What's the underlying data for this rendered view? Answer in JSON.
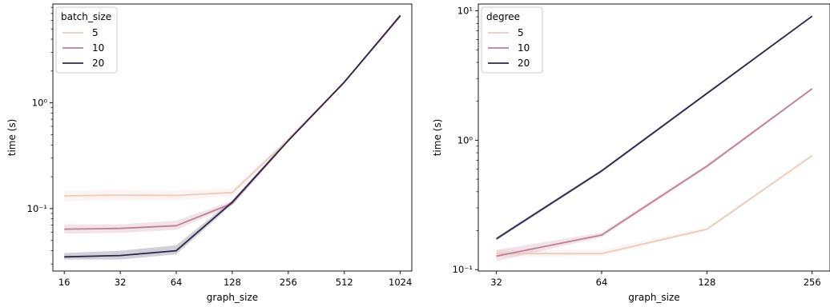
{
  "chart_data": [
    {
      "type": "line",
      "xlabel": "graph_size",
      "ylabel": "time (s)",
      "x_scale": "log2",
      "y_scale": "log10",
      "xlim": [
        13.9,
        1180
      ],
      "ylim": [
        0.0257,
        8.6
      ],
      "xticks": [
        16,
        32,
        64,
        128,
        256,
        512,
        1024
      ],
      "xtick_labels": [
        "16",
        "32",
        "64",
        "128",
        "256",
        "512",
        "1024"
      ],
      "yticks": [
        0.1,
        1
      ],
      "ytick_labels": [
        "10⁻¹",
        "10⁰"
      ],
      "legend": {
        "title": "batch_size",
        "placement": "top-left"
      },
      "x": [
        16,
        32,
        64,
        128,
        256,
        512,
        1024
      ],
      "series": [
        {
          "name": "5",
          "color": "#eccbbd",
          "values": [
            0.132,
            0.134,
            0.133,
            0.142,
            0.45,
            1.58,
            6.6
          ],
          "ci_low": [
            0.117,
            0.12,
            0.119,
            0.132,
            0.43,
            1.55,
            6.4
          ],
          "ci_high": [
            0.148,
            0.149,
            0.148,
            0.154,
            0.47,
            1.62,
            6.8
          ]
        },
        {
          "name": "10",
          "color": "#c07f97",
          "values": [
            0.064,
            0.065,
            0.069,
            0.112,
            0.44,
            1.57,
            6.6
          ],
          "ci_low": [
            0.058,
            0.059,
            0.063,
            0.107,
            0.43,
            1.54,
            6.4
          ],
          "ci_high": [
            0.071,
            0.071,
            0.077,
            0.118,
            0.46,
            1.61,
            6.8
          ]
        },
        {
          "name": "20",
          "color": "#2d2447",
          "values": [
            0.035,
            0.036,
            0.04,
            0.115,
            0.44,
            1.57,
            6.7
          ],
          "ci_low": [
            0.033,
            0.033,
            0.037,
            0.11,
            0.43,
            1.54,
            6.5
          ],
          "ci_high": [
            0.038,
            0.04,
            0.045,
            0.12,
            0.46,
            1.61,
            6.9
          ]
        }
      ]
    },
    {
      "type": "line",
      "xlabel": "graph_size",
      "ylabel": "time (s)",
      "x_scale": "log2",
      "y_scale": "log10",
      "xlim": [
        28.4,
        288
      ],
      "ylim": [
        0.0975,
        11.3
      ],
      "xticks": [
        32,
        64,
        128,
        256
      ],
      "xtick_labels": [
        "32",
        "64",
        "128",
        "256"
      ],
      "yticks": [
        0.1,
        1,
        10
      ],
      "ytick_labels": [
        "10⁻¹",
        "10⁰",
        "10¹"
      ],
      "legend": {
        "title": "degree",
        "placement": "top-left"
      },
      "x": [
        32,
        64,
        128,
        256
      ],
      "series": [
        {
          "name": "5",
          "color": "#eccbbd",
          "values": [
            0.133,
            0.133,
            0.205,
            0.76
          ],
          "ci_low": [
            0.126,
            0.127,
            0.2,
            0.74
          ],
          "ci_high": [
            0.142,
            0.142,
            0.212,
            0.78
          ]
        },
        {
          "name": "10",
          "color": "#c07f97",
          "values": [
            0.127,
            0.185,
            0.63,
            2.5
          ],
          "ci_low": [
            0.116,
            0.178,
            0.61,
            2.45
          ],
          "ci_high": [
            0.142,
            0.193,
            0.65,
            2.55
          ]
        },
        {
          "name": "20",
          "color": "#2d2447",
          "values": [
            0.173,
            0.58,
            2.3,
            9.1
          ],
          "ci_low": [
            0.168,
            0.565,
            2.25,
            8.95
          ],
          "ci_high": [
            0.178,
            0.595,
            2.35,
            9.25
          ]
        }
      ]
    }
  ]
}
